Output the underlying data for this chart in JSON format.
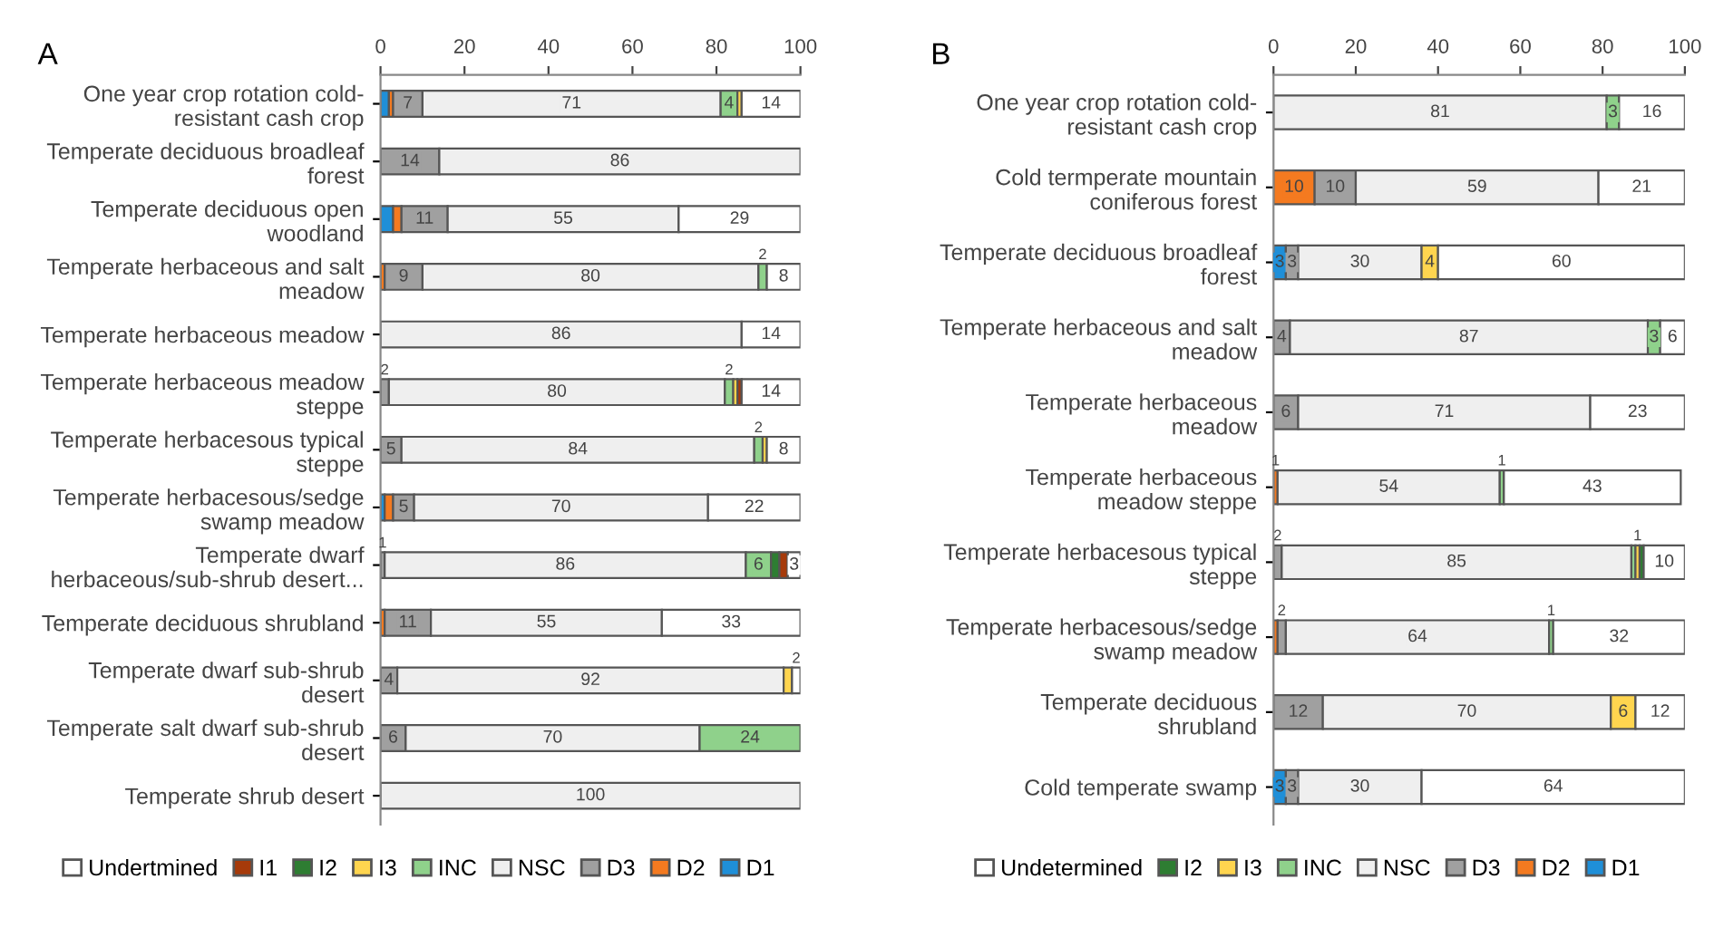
{
  "chart_data": [
    {
      "type": "bar",
      "title": "A",
      "orientation": "horizontal",
      "stacked": true,
      "xlim": [
        0,
        100
      ],
      "xticks": [
        0,
        20,
        40,
        60,
        80,
        100
      ],
      "grid": false,
      "legend": "bottom",
      "categories": [
        "One year crop rotation cold-\nresistant cash crop",
        "Temperate deciduous broadleaf\nforest",
        "Temperate deciduous open\nwoodland",
        "Temperate herbaceous and salt\nmeadow",
        "Temperate herbaceous meadow",
        "Temperate herbaceous meadow\nsteppe",
        "Temperate herbacesous typical\nsteppe",
        "Temperate herbacesous/sedge\nswamp meadow",
        "Temperate dwarf\nherbaceous/sub-shrub desert...",
        "Temperate deciduous shrubland",
        "Temperate dwarf sub-shrub\ndesert",
        "Temperate salt dwarf sub-shrub\ndesert",
        "Temperate shrub desert"
      ],
      "series": [
        {
          "name": "D1",
          "color": "#1f8fd8",
          "values": [
            2,
            0,
            3,
            0,
            0,
            0,
            0,
            1,
            0,
            0,
            0,
            0,
            0
          ],
          "value_labels": [
            null,
            null,
            null,
            null,
            null,
            null,
            null,
            null,
            null,
            null,
            null,
            null,
            null
          ]
        },
        {
          "name": "D2",
          "color": "#f47a20",
          "values": [
            1,
            0,
            2,
            1,
            0,
            0,
            0,
            2,
            0,
            1,
            0,
            0,
            0
          ],
          "value_labels": [
            null,
            null,
            null,
            null,
            null,
            null,
            null,
            null,
            null,
            null,
            null,
            null,
            null
          ]
        },
        {
          "name": "D3",
          "color": "#a0a0a0",
          "values": [
            7,
            14,
            11,
            9,
            0,
            2,
            5,
            5,
            1,
            11,
            4,
            6,
            0
          ],
          "value_labels": [
            "7",
            "14",
            "11",
            "9",
            null,
            "2",
            "5",
            "5",
            "1",
            "11",
            "4",
            "6",
            null
          ]
        },
        {
          "name": "NSC",
          "color": "#efefef",
          "values": [
            71,
            86,
            55,
            80,
            86,
            80,
            84,
            70,
            86,
            55,
            92,
            70,
            100
          ],
          "value_labels": [
            "71",
            "86",
            "55",
            "80",
            "86",
            "80",
            "84",
            "70",
            "86",
            "55",
            "92",
            "70",
            "100"
          ]
        },
        {
          "name": "INC",
          "color": "#8fd18b",
          "values": [
            4,
            0,
            0,
            2,
            0,
            2,
            2,
            0,
            6,
            0,
            0,
            24,
            0
          ],
          "value_labels": [
            "4",
            null,
            null,
            "2",
            null,
            "2",
            "2",
            null,
            "6",
            null,
            null,
            "24",
            null
          ]
        },
        {
          "name": "I3",
          "color": "#ffd54f",
          "values": [
            1,
            0,
            0,
            0,
            0,
            1,
            1,
            0,
            0,
            0,
            2,
            0,
            0
          ],
          "value_labels": [
            null,
            null,
            null,
            null,
            null,
            null,
            null,
            null,
            null,
            null,
            null,
            null,
            null
          ]
        },
        {
          "name": "I2",
          "color": "#2e7d32",
          "values": [
            0,
            0,
            0,
            0,
            0,
            0,
            0,
            0,
            2,
            0,
            0,
            0,
            0
          ],
          "value_labels": [
            null,
            null,
            null,
            null,
            null,
            null,
            null,
            null,
            null,
            null,
            null,
            null,
            null
          ]
        },
        {
          "name": "I1",
          "color": "#a63a0a",
          "values": [
            0,
            0,
            0,
            0,
            0,
            1,
            0,
            0,
            2,
            0,
            0,
            0,
            0
          ],
          "value_labels": [
            null,
            null,
            null,
            null,
            null,
            null,
            null,
            null,
            null,
            null,
            null,
            null,
            null
          ]
        },
        {
          "name": "Undertmined",
          "color": "#ffffff",
          "values": [
            14,
            0,
            29,
            8,
            14,
            14,
            8,
            22,
            3,
            33,
            2,
            0,
            0
          ],
          "value_labels": [
            "14",
            null,
            "29",
            "8",
            "14",
            "14",
            "8",
            "22",
            "3",
            "33",
            "2",
            null,
            null
          ]
        }
      ]
    },
    {
      "type": "bar",
      "title": "B",
      "orientation": "horizontal",
      "stacked": true,
      "xlim": [
        0,
        100
      ],
      "xticks": [
        0,
        20,
        40,
        60,
        80,
        100
      ],
      "grid": false,
      "legend": "bottom",
      "categories": [
        "One year crop rotation cold-\nresistant cash crop",
        "Cold termperate mountain\nconiferous forest",
        "Temperate deciduous broadleaf\nforest",
        "Temperate herbaceous and salt\nmeadow",
        "Temperate herbaceous\nmeadow",
        "Temperate herbaceous\nmeadow steppe",
        "Temperate herbacesous typical\nsteppe",
        "Temperate herbacesous/sedge\nswamp meadow",
        "Temperate deciduous\nshrubland",
        "Cold temperate swamp"
      ],
      "series": [
        {
          "name": "D1",
          "color": "#1f8fd8",
          "values": [
            0,
            0,
            3,
            0,
            0,
            0,
            0,
            0,
            0,
            3
          ],
          "value_labels": [
            null,
            null,
            "3",
            null,
            null,
            null,
            null,
            null,
            null,
            "3"
          ]
        },
        {
          "name": "D2",
          "color": "#f47a20",
          "values": [
            0,
            10,
            0,
            0,
            0,
            1,
            0,
            1,
            0,
            0
          ],
          "value_labels": [
            null,
            "10",
            null,
            null,
            null,
            "1",
            null,
            null,
            null,
            null
          ]
        },
        {
          "name": "D3",
          "color": "#a0a0a0",
          "values": [
            0,
            10,
            3,
            4,
            6,
            0,
            2,
            2,
            12,
            3
          ],
          "value_labels": [
            null,
            "10",
            "3",
            "4",
            "6",
            null,
            "2",
            "2",
            "12",
            "3"
          ]
        },
        {
          "name": "NSC",
          "color": "#efefef",
          "values": [
            81,
            59,
            30,
            87,
            71,
            54,
            85,
            64,
            70,
            30
          ],
          "value_labels": [
            "81",
            "59",
            "30",
            "87",
            "71",
            "54",
            "85",
            "64",
            "70",
            "30"
          ]
        },
        {
          "name": "INC",
          "color": "#8fd18b",
          "values": [
            3,
            0,
            0,
            3,
            0,
            1,
            1,
            1,
            0,
            0
          ],
          "value_labels": [
            "3",
            null,
            null,
            "3",
            null,
            "1",
            null,
            "1",
            null,
            null
          ]
        },
        {
          "name": "I3",
          "color": "#ffd54f",
          "values": [
            0,
            0,
            4,
            0,
            0,
            0,
            1,
            0,
            6,
            0
          ],
          "value_labels": [
            null,
            null,
            "4",
            null,
            null,
            null,
            "1",
            null,
            "6",
            null
          ]
        },
        {
          "name": "I2",
          "color": "#2e7d32",
          "values": [
            0,
            0,
            0,
            0,
            0,
            0,
            1,
            0,
            0,
            0
          ],
          "value_labels": [
            null,
            null,
            null,
            null,
            null,
            null,
            null,
            null,
            null,
            null
          ]
        },
        {
          "name": "Undetermined",
          "color": "#ffffff",
          "values": [
            16,
            21,
            60,
            6,
            23,
            43,
            10,
            32,
            12,
            64
          ],
          "value_labels": [
            "16",
            "21",
            "60",
            "6",
            "23",
            "43",
            "10",
            "32",
            "12",
            "64"
          ]
        }
      ]
    }
  ]
}
